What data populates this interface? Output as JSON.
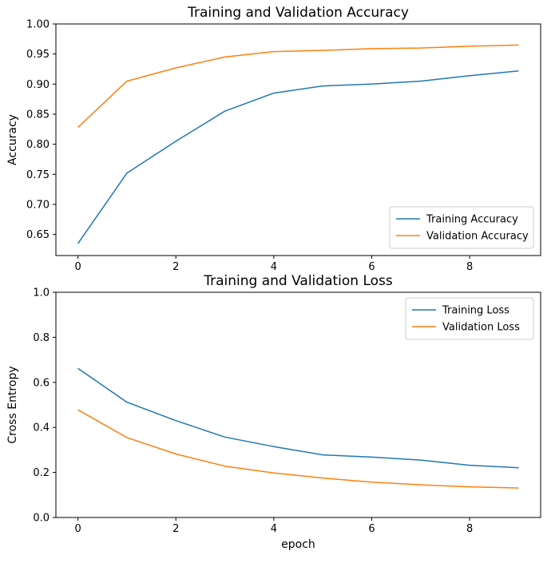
{
  "figure": {
    "background": "#ffffff",
    "text_color": "#000000",
    "axes_color": "#000000",
    "legend_border_color": "#cccccc"
  },
  "chart_data": [
    {
      "type": "line",
      "title": "Training and Validation Accuracy",
      "xlabel": "",
      "ylabel": "Accuracy",
      "x": [
        0,
        1,
        2,
        3,
        4,
        5,
        6,
        7,
        8,
        9
      ],
      "series": [
        {
          "name": "Training Accuracy",
          "color": "#1f77b4",
          "values": [
            0.635,
            0.752,
            0.805,
            0.855,
            0.885,
            0.897,
            0.9,
            0.905,
            0.914,
            0.922
          ]
        },
        {
          "name": "Validation Accuracy",
          "color": "#ff7f0e",
          "values": [
            0.828,
            0.905,
            0.927,
            0.945,
            0.954,
            0.956,
            0.959,
            0.96,
            0.963,
            0.965
          ]
        }
      ],
      "xlim": [
        -0.45,
        9.45
      ],
      "ylim": [
        0.615,
        1.0
      ],
      "xticks": [
        0,
        2,
        4,
        6,
        8
      ],
      "xtick_labels": [
        "0",
        "2",
        "4",
        "6",
        "8"
      ],
      "yticks": [
        0.65,
        0.7,
        0.75,
        0.8,
        0.85,
        0.9,
        0.95,
        1.0
      ],
      "ytick_labels": [
        "0.65",
        "0.70",
        "0.75",
        "0.80",
        "0.85",
        "0.90",
        "0.95",
        "1.00"
      ],
      "grid": false,
      "legend": {
        "position": "lower right",
        "entries": [
          "Training Accuracy",
          "Validation Accuracy"
        ]
      }
    },
    {
      "type": "line",
      "title": "Training and Validation Loss",
      "xlabel": "epoch",
      "ylabel": "Cross Entropy",
      "x": [
        0,
        1,
        2,
        3,
        4,
        5,
        6,
        7,
        8,
        9
      ],
      "series": [
        {
          "name": "Training Loss",
          "color": "#1f77b4",
          "values": [
            0.662,
            0.512,
            0.43,
            0.357,
            0.315,
            0.278,
            0.268,
            0.255,
            0.232,
            0.221
          ]
        },
        {
          "name": "Validation Loss",
          "color": "#ff7f0e",
          "values": [
            0.478,
            0.355,
            0.282,
            0.228,
            0.198,
            0.175,
            0.157,
            0.145,
            0.136,
            0.131
          ]
        }
      ],
      "xlim": [
        -0.45,
        9.45
      ],
      "ylim": [
        0.0,
        1.0
      ],
      "xticks": [
        0,
        2,
        4,
        6,
        8
      ],
      "xtick_labels": [
        "0",
        "2",
        "4",
        "6",
        "8"
      ],
      "yticks": [
        0.0,
        0.2,
        0.4,
        0.6,
        0.8,
        1.0
      ],
      "ytick_labels": [
        "0.0",
        "0.2",
        "0.4",
        "0.6",
        "0.8",
        "1.0"
      ],
      "grid": false,
      "legend": {
        "position": "upper right",
        "entries": [
          "Training Loss",
          "Validation Loss"
        ]
      }
    }
  ]
}
